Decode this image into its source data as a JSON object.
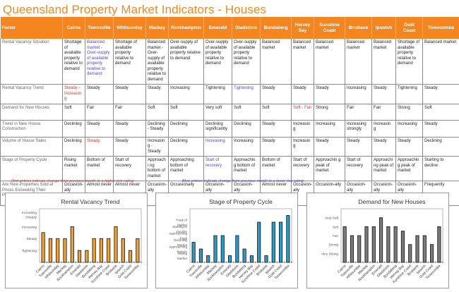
{
  "title": "Queensland Property Market Indicators - Houses",
  "table": {
    "headers": [
      "Factor",
      "Cairns",
      "Townsville",
      "Whitsunday",
      "Mackay",
      "Rockhampton",
      "Emerald",
      "Gladstone",
      "Bundaberg",
      "Hervey Bay",
      "Sunshine Coast",
      "Brisbane",
      "Ipswich",
      "Gold Coast",
      "Toowoomba"
    ],
    "rows": [
      {
        "factor": "Rental Vacancy Situation",
        "cells": [
          {
            "text": "Shortage of available property relative to demand",
            "tone": ""
          },
          {
            "text": "Balanced market - Over-supply of available property relative to demand",
            "tone": "blue"
          },
          {
            "text": "Shortage of available property relative to demand",
            "tone": ""
          },
          {
            "text": "Balanced market - Over-supply of available property relative to demand",
            "tone": ""
          },
          {
            "text": "Over-supply of available property relative to demand",
            "tone": ""
          },
          {
            "text": "Over-supply of available property relative to demand",
            "tone": ""
          },
          {
            "text": "Over-supply of available property relative to demand",
            "tone": ""
          },
          {
            "text": "Balanced market",
            "tone": ""
          },
          {
            "text": "Balanced market",
            "tone": ""
          },
          {
            "text": "Balanced market",
            "tone": ""
          },
          {
            "text": "Balanced market",
            "tone": ""
          },
          {
            "text": "Balanced market",
            "tone": ""
          },
          {
            "text": "Shortage of available property relative to demand",
            "tone": ""
          },
          {
            "text": "Balanced market",
            "tone": ""
          }
        ]
      },
      {
        "factor": "Rental Vacancy Trend",
        "cells": [
          {
            "text": "Steady - Increasing",
            "tone": "red"
          },
          {
            "text": "Steady",
            "tone": ""
          },
          {
            "text": "Steady",
            "tone": ""
          },
          {
            "text": "Steady",
            "tone": ""
          },
          {
            "text": "Increasing",
            "tone": ""
          },
          {
            "text": "Tightening",
            "tone": ""
          },
          {
            "text": "Tightening",
            "tone": "blue"
          },
          {
            "text": "Steady",
            "tone": ""
          },
          {
            "text": "Steady",
            "tone": ""
          },
          {
            "text": "Steady",
            "tone": ""
          },
          {
            "text": "Increasing",
            "tone": ""
          },
          {
            "text": "Steady",
            "tone": ""
          },
          {
            "text": "Tightening",
            "tone": ""
          },
          {
            "text": "Steady",
            "tone": ""
          }
        ]
      },
      {
        "factor": "Demand for New Houses",
        "cells": [
          {
            "text": "Soft",
            "tone": ""
          },
          {
            "text": "Fair",
            "tone": ""
          },
          {
            "text": "Fair",
            "tone": ""
          },
          {
            "text": "Soft",
            "tone": ""
          },
          {
            "text": "Soft",
            "tone": ""
          },
          {
            "text": "Very soft",
            "tone": ""
          },
          {
            "text": "Soft",
            "tone": ""
          },
          {
            "text": "Soft",
            "tone": ""
          },
          {
            "text": "Soft - Fair",
            "tone": "red"
          },
          {
            "text": "Strong",
            "tone": ""
          },
          {
            "text": "Fair",
            "tone": ""
          },
          {
            "text": "Fair",
            "tone": ""
          },
          {
            "text": "Strong",
            "tone": ""
          },
          {
            "text": "Soft",
            "tone": ""
          }
        ]
      },
      {
        "factor": "Trend in New House Construction",
        "cells": [
          {
            "text": "Declining",
            "tone": ""
          },
          {
            "text": "Steady",
            "tone": ""
          },
          {
            "text": "Steady",
            "tone": ""
          },
          {
            "text": "Declining - Steady",
            "tone": ""
          },
          {
            "text": "Declining",
            "tone": ""
          },
          {
            "text": "Declining significantly",
            "tone": ""
          },
          {
            "text": "Declining",
            "tone": ""
          },
          {
            "text": "Steady",
            "tone": ""
          },
          {
            "text": "Increasin g",
            "tone": ""
          },
          {
            "text": "Increasing",
            "tone": ""
          },
          {
            "text": "Increasing strongly",
            "tone": ""
          },
          {
            "text": "Increasin g",
            "tone": ""
          },
          {
            "text": "Increasing",
            "tone": ""
          },
          {
            "text": "Steady",
            "tone": ""
          }
        ]
      },
      {
        "factor": "Volume of House Sales",
        "cells": [
          {
            "text": "Declining",
            "tone": ""
          },
          {
            "text": "Steady",
            "tone": "red"
          },
          {
            "text": "Steady",
            "tone": ""
          },
          {
            "text": "Increasin g - Steady",
            "tone": ""
          },
          {
            "text": "Declining",
            "tone": ""
          },
          {
            "text": "Increasing",
            "tone": "blue"
          },
          {
            "text": "Increasing",
            "tone": ""
          },
          {
            "text": "Steady",
            "tone": ""
          },
          {
            "text": "Increasin g",
            "tone": ""
          },
          {
            "text": "Steady",
            "tone": ""
          },
          {
            "text": "Steady",
            "tone": ""
          },
          {
            "text": "Steady",
            "tone": ""
          },
          {
            "text": "Steady",
            "tone": ""
          },
          {
            "text": "Declining",
            "tone": ""
          }
        ]
      },
      {
        "factor": "Stage of Property Cycle",
        "cells": [
          {
            "text": "Rising market",
            "tone": ""
          },
          {
            "text": "Bottom of market",
            "tone": ""
          },
          {
            "text": "Start of recovery",
            "tone": ""
          },
          {
            "text": "Approachi ng bottom of market",
            "tone": ""
          },
          {
            "text": "Approaching bottom of market",
            "tone": ""
          },
          {
            "text": "Start of recovery",
            "tone": "blue"
          },
          {
            "text": "Approachin g bottom of market",
            "tone": ""
          },
          {
            "text": "Bottom of market",
            "tone": ""
          },
          {
            "text": "Start of recovery",
            "tone": ""
          },
          {
            "text": "Approachin g peak of market",
            "tone": ""
          },
          {
            "text": "Start of recovery",
            "tone": ""
          },
          {
            "text": "Approachi ng peak of market",
            "tone": ""
          },
          {
            "text": "Approachin g peak of market",
            "tone": ""
          },
          {
            "text": "Starting to decline",
            "tone": ""
          }
        ]
      },
      {
        "factor": "Are New Properties Sold at Prices Exceeding Their Potential Resale Value",
        "cells": [
          {
            "text": "Occasion-ally",
            "tone": ""
          },
          {
            "text": "Almost never",
            "tone": ""
          },
          {
            "text": "Almost never",
            "tone": ""
          },
          {
            "text": "Occasion-ally",
            "tone": ""
          },
          {
            "text": "Occasionally",
            "tone": ""
          },
          {
            "text": "Occasion-ally",
            "tone": ""
          },
          {
            "text": "Occasion-ally",
            "tone": ""
          },
          {
            "text": "Almost never",
            "tone": ""
          },
          {
            "text": "Occasion-ally",
            "tone": ""
          },
          {
            "text": "Occasion-ally",
            "tone": ""
          },
          {
            "text": "Occasion-ally",
            "tone": ""
          },
          {
            "text": "Occasion-ally",
            "tone": ""
          },
          {
            "text": "Occasion-ally",
            "tone": ""
          },
          {
            "text": "Frequently",
            "tone": ""
          }
        ]
      }
    ]
  },
  "notes": {
    "red": "Red entries indicate change from previous month to a higher risk-rating",
    "blue": "Blue entries indicate change from previous month to a lower risk-rating"
  },
  "colors": {
    "header_orange": "#f5861f",
    "title_orange": "#f08a24",
    "red_entry": "#e0342a",
    "blue_entry": "#5b3fd6"
  },
  "chart_data": [
    {
      "type": "bar",
      "title": "Rental Vacancy Trend",
      "color": "#f0a030",
      "categories": [
        "Cairns",
        "Townsville",
        "Whitsunday",
        "Mackay",
        "Rockhampton",
        "Emerald",
        "Gladstone",
        "Bundaberg",
        "Hervey Bay",
        "Sunshine Coast",
        "Brisbane",
        "Ipswich",
        "Gold Coast",
        "Toowoomba"
      ],
      "values": [
        2.5,
        2,
        2,
        2,
        3,
        1,
        1,
        2,
        2,
        2,
        3,
        2,
        1,
        2
      ],
      "ytick_values": [
        1,
        2,
        3,
        4
      ],
      "ytick_labels": [
        "Tightening",
        "Steady",
        "Increasing",
        "Increasing Sharply"
      ],
      "ylim": [
        0,
        4.5
      ],
      "xlabel": "",
      "ylabel": "",
      "grid": false,
      "legend": "none"
    },
    {
      "type": "bar",
      "title": "Stage of Property Cycle",
      "color": "#2a9bc8",
      "categories": [
        "Cairns",
        "Townsville",
        "Whitsunday",
        "Mackay",
        "Rockhampton",
        "Emerald",
        "Gladstone",
        "Bundaberg",
        "Hervey Bay",
        "Sunshine Coast",
        "Brisbane",
        "Ipswich",
        "Gold Coast",
        "Toowoomba"
      ],
      "values": [
        3,
        2,
        1,
        4,
        4,
        1,
        4,
        2,
        1,
        6,
        1,
        6,
        6,
        7
      ],
      "ytick_values": [
        1,
        2,
        3,
        4,
        5,
        6,
        7
      ],
      "ytick_labels": [
        "Rising Market",
        "Approaching Bottom",
        "Declining Market",
        "Approaching Peak",
        "Starting to Decline",
        "Peak of Market",
        ""
      ],
      "ytick_labels_display": [
        "Rising Market",
        "Approaching Bottom",
        "Declining Market",
        "Approaching Peak",
        "Starting to Decline",
        "Peak of Market"
      ],
      "ylim": [
        0,
        8
      ],
      "xlabel": "",
      "ylabel": "",
      "grid": false,
      "legend": "none"
    },
    {
      "type": "bar",
      "title": "Demand for New Houses",
      "color": "#7a7a7a",
      "categories": [
        "Cairns",
        "Townsville",
        "Whitsunday",
        "Mackay",
        "Rockhampton",
        "Emerald",
        "Gladstone",
        "Bundaberg",
        "Hervey Bay",
        "Sunshine Coast",
        "Brisbane",
        "Ipswich",
        "Gold Coast",
        "Toowoomba"
      ],
      "values": [
        4,
        3,
        3,
        4,
        4,
        5,
        4,
        4,
        3.5,
        2,
        3,
        3,
        2,
        4
      ],
      "ytick_values": [
        1,
        2,
        3,
        4,
        5
      ],
      "ytick_labels": [
        "Very Strong",
        "Strong",
        "Fair",
        "Soft",
        "Very Soft"
      ],
      "ylim": [
        0,
        6
      ],
      "xlabel": "",
      "ylabel": "",
      "grid": false,
      "legend": "none"
    }
  ]
}
